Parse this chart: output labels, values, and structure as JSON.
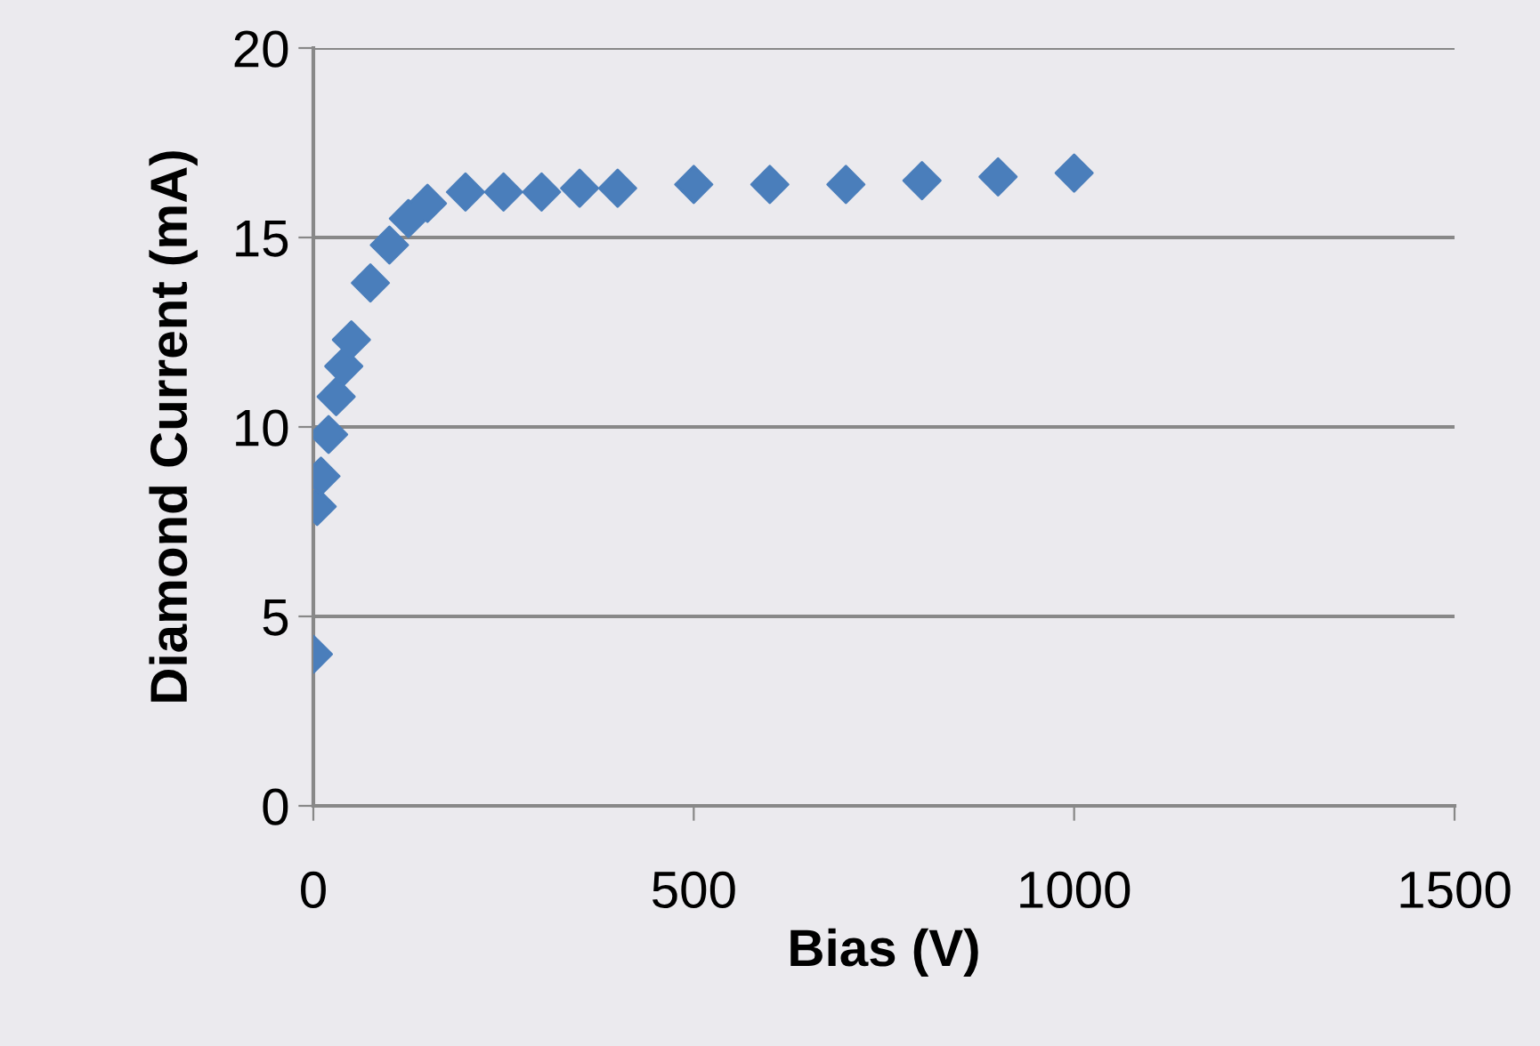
{
  "chart_data": {
    "type": "scatter",
    "xlabel": "Bias (V)",
    "ylabel": "Diamond Current (mA)",
    "x": [
      0,
      5,
      10,
      20,
      30,
      40,
      50,
      75,
      100,
      125,
      150,
      200,
      250,
      300,
      350,
      400,
      500,
      600,
      700,
      800,
      900,
      1000
    ],
    "series": [
      {
        "color": "#4a7ebb",
        "values": [
          4.0,
          7.9,
          8.7,
          9.8,
          10.8,
          11.6,
          12.3,
          13.8,
          14.8,
          15.5,
          15.9,
          16.2,
          16.2,
          16.2,
          16.3,
          16.3,
          16.4,
          16.4,
          16.4,
          16.5,
          16.6,
          16.7
        ]
      }
    ],
    "xlim": [
      0,
      1500
    ],
    "xticks": [
      0,
      500,
      1000,
      1500
    ],
    "ylim": [
      0,
      20
    ],
    "yticks": [
      0,
      5,
      10,
      15,
      20
    ],
    "grid": "y",
    "marker": "diamond",
    "legend": false
  }
}
